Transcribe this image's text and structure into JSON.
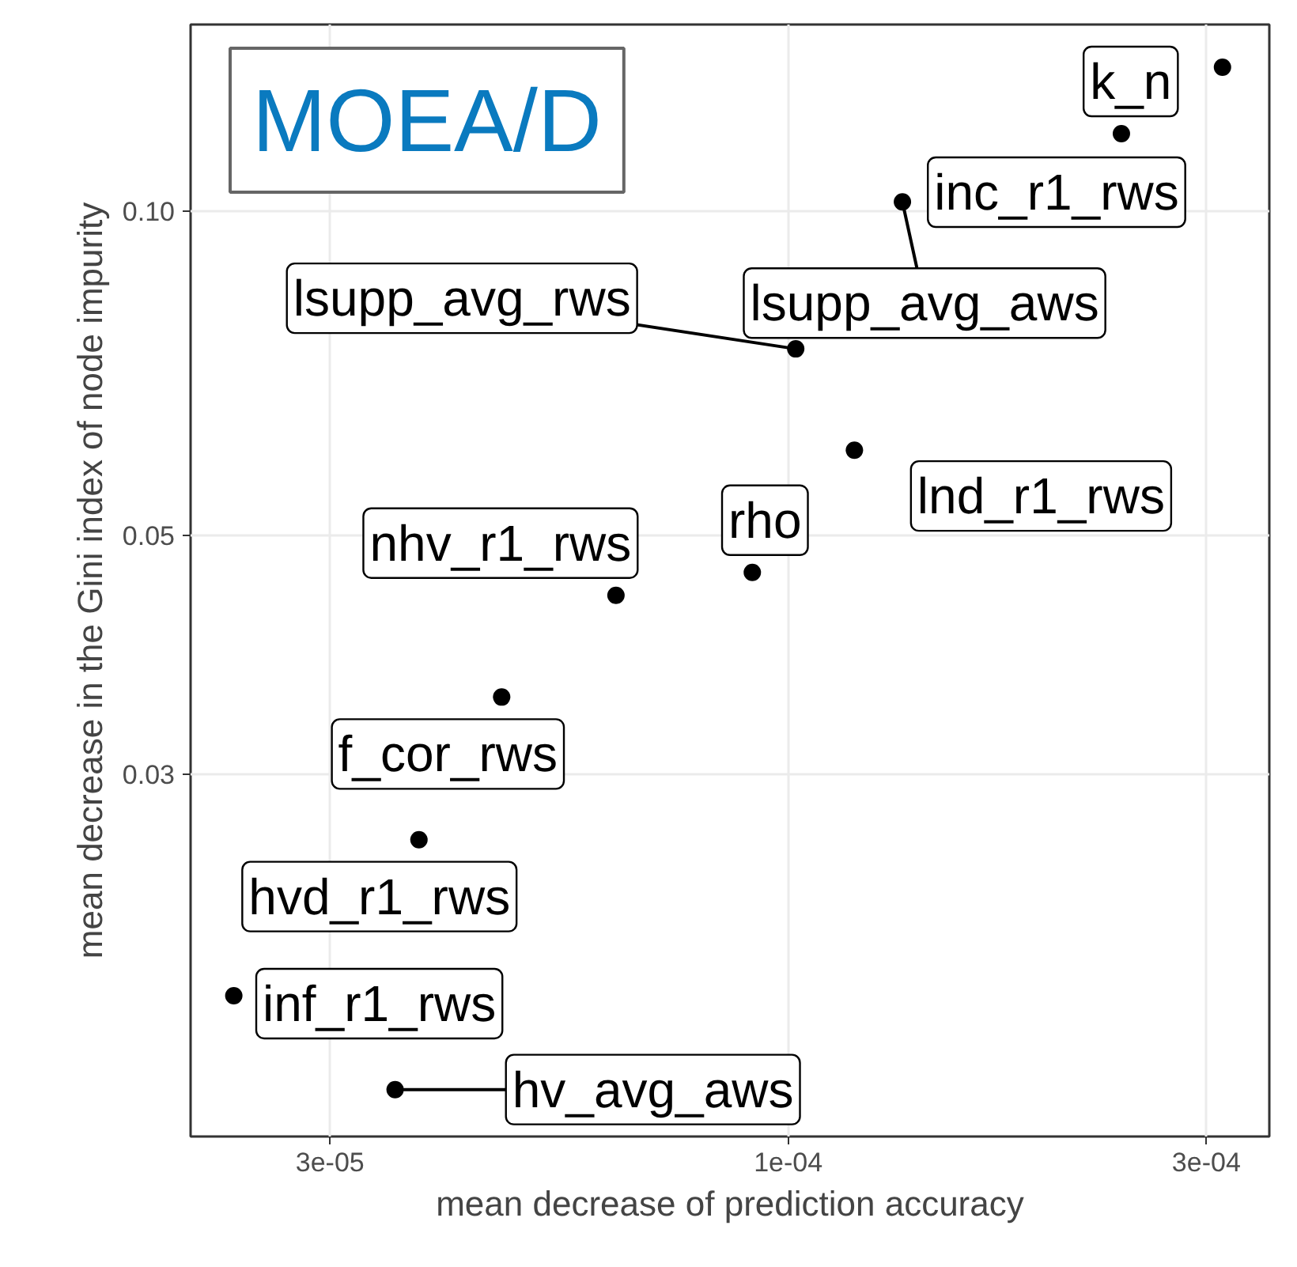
{
  "chart_data": {
    "type": "scatter",
    "xlabel": "mean decrease of prediction accuracy",
    "ylabel": "mean decrease in the Gini index of node impurity",
    "log": "xy",
    "grid": true,
    "marker": "circle",
    "xlim": [
      2.08e-05,
      0.000354
    ],
    "ylim": [
      0.01384,
      0.149
    ],
    "xticks": [
      {
        "value": 3e-05,
        "label": "3e-05"
      },
      {
        "value": 0.0001,
        "label": "1e-04"
      },
      {
        "value": 0.0003,
        "label": "3e-04"
      }
    ],
    "yticks": [
      {
        "value": 0.03,
        "label": "0.03"
      },
      {
        "value": 0.05,
        "label": "0.05"
      },
      {
        "value": 0.1,
        "label": "0.10"
      }
    ],
    "series": [
      {
        "color": "#000000",
        "x": [
          0.000313,
          0.00024,
          0.000135,
          0.000102,
          0.000119,
          9.1e-05,
          6.36e-05,
          4.71e-05,
          3.79e-05,
          2.33e-05,
          3.56e-05
        ],
        "values": [
          0.136,
          0.118,
          0.102,
          0.0745,
          0.06,
          0.0462,
          0.044,
          0.0354,
          0.0261,
          0.0187,
          0.0153
        ]
      }
    ],
    "annotations": [
      "MOEA/D",
      {
        "text": "k_n",
        "x": 0.000313,
        "y": 0.136
      },
      {
        "text": "inc_r1_rws",
        "x": 0.00024,
        "y": 0.118
      },
      {
        "text": "lsupp_avg_aws",
        "x": 0.000135,
        "y": 0.102
      },
      {
        "text": "lsupp_avg_rws",
        "x": 0.000102,
        "y": 0.0745
      },
      {
        "text": "lnd_r1_rws",
        "x": 0.000119,
        "y": 0.06
      },
      {
        "text": "rho",
        "x": 9.1e-05,
        "y": 0.0462
      },
      {
        "text": "nhv_r1_rws",
        "x": 6.36e-05,
        "y": 0.044
      },
      {
        "text": "f_cor_rws",
        "x": 4.71e-05,
        "y": 0.0354
      },
      {
        "text": "hvd_r1_rws",
        "x": 3.79e-05,
        "y": 0.0261
      },
      {
        "text": "inf_r1_rws",
        "x": 2.33e-05,
        "y": 0.0187
      },
      {
        "text": "hv_avg_aws",
        "x": 3.56e-05,
        "y": 0.0153
      }
    ]
  }
}
